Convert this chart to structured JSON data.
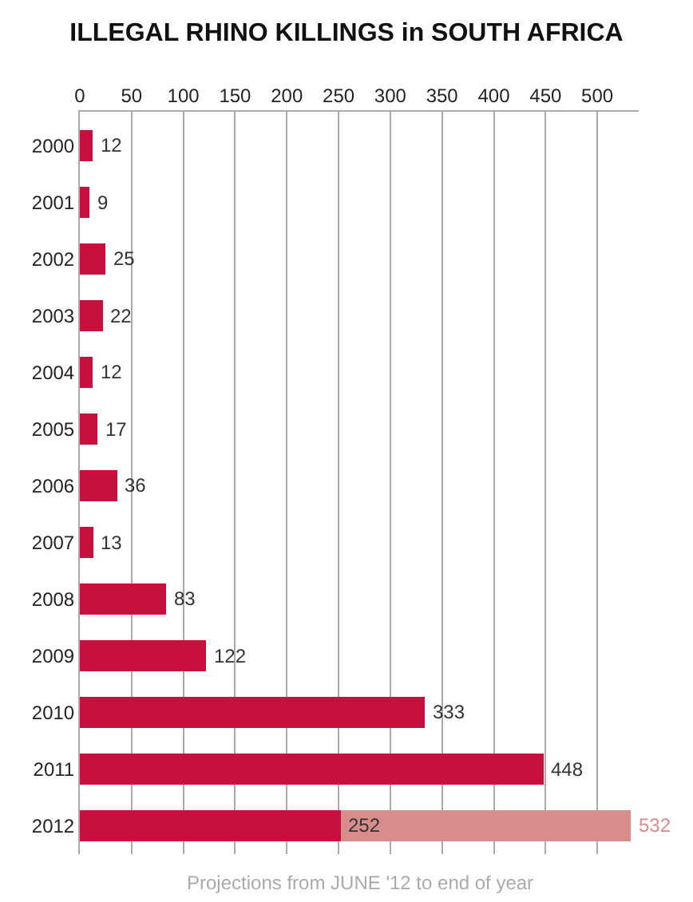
{
  "chart_data": {
    "type": "bar",
    "orientation": "horizontal",
    "title": "ILLEGAL RHINO KILLINGS in SOUTH AFRICA",
    "categories": [
      "2000",
      "2001",
      "2002",
      "2003",
      "2004",
      "2005",
      "2006",
      "2007",
      "2008",
      "2009",
      "2010",
      "2011",
      "2012"
    ],
    "series": [
      {
        "color": "#c8103e",
        "values": [
          12,
          9,
          25,
          22,
          12,
          17,
          36,
          13,
          83,
          122,
          333,
          448,
          252
        ],
        "value_labels": [
          "12",
          "9",
          "25",
          "22",
          "12",
          "17",
          "36",
          "13",
          "83",
          "122",
          "333",
          "448",
          "252"
        ]
      },
      {
        "color": "#d98c8c",
        "values": [
          null,
          null,
          null,
          null,
          null,
          null,
          null,
          null,
          null,
          null,
          null,
          null,
          280
        ]
      }
    ],
    "stacked": true,
    "totals": [
      null,
      null,
      null,
      null,
      null,
      null,
      null,
      null,
      null,
      null,
      null,
      null,
      "532"
    ],
    "xlim": [
      0,
      540
    ],
    "xticks": [
      0,
      50,
      100,
      150,
      200,
      250,
      300,
      350,
      400,
      450,
      500
    ],
    "grid": "x",
    "annotations": [
      "Projections from JUNE '12 to end of year"
    ]
  }
}
